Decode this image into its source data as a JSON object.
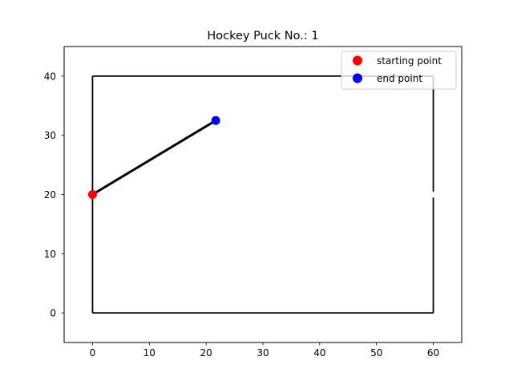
{
  "chart_data": {
    "type": "line",
    "title": "Hockey Puck No.: 1",
    "xlabel": "",
    "ylabel": "",
    "xlim": [
      -5,
      65
    ],
    "ylim": [
      -5,
      45
    ],
    "xticks": [
      0,
      10,
      20,
      30,
      40,
      50,
      60
    ],
    "yticks": [
      0,
      10,
      20,
      30,
      40
    ],
    "grid": false,
    "legend_position": "top-right",
    "rink": {
      "segments": [
        [
          [
            0,
            0
          ],
          [
            60,
            0
          ]
        ],
        [
          [
            0,
            0
          ],
          [
            0,
            40
          ]
        ],
        [
          [
            0,
            40
          ],
          [
            60,
            40
          ]
        ],
        [
          [
            60,
            40
          ],
          [
            60,
            20.5
          ]
        ],
        [
          [
            60,
            19.5
          ],
          [
            60,
            0
          ]
        ]
      ],
      "color": "#000000"
    },
    "trajectory": {
      "x": [
        0,
        21.7
      ],
      "y": [
        20,
        32.5
      ],
      "color": "#000000"
    },
    "series": [
      {
        "name": "starting point",
        "x": [
          0
        ],
        "y": [
          20
        ],
        "color": "#ff0000"
      },
      {
        "name": "end point",
        "x": [
          21.7
        ],
        "y": [
          32.5
        ],
        "color": "#0000ff"
      }
    ]
  }
}
